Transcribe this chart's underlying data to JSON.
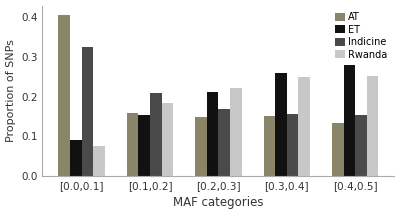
{
  "categories": [
    "[0.0,0.1]",
    "[0.1,0.2]",
    "[0.2,0.3]",
    "[0.3,0.4]",
    "[0.4,0.5]"
  ],
  "series": {
    "AT": [
      0.405,
      0.158,
      0.15,
      0.151,
      0.133
    ],
    "ET": [
      0.092,
      0.155,
      0.213,
      0.261,
      0.281
    ],
    "Indicine": [
      0.326,
      0.21,
      0.17,
      0.157,
      0.155
    ],
    "Rwanda": [
      0.077,
      0.183,
      0.221,
      0.25,
      0.252
    ]
  },
  "colors": {
    "AT": "#8a8468",
    "ET": "#111111",
    "Indicine": "#4a4a4a",
    "Rwanda": "#c8c8c8"
  },
  "xlabel": "MAF categories",
  "ylabel": "Proportion of SNPs",
  "ylim": [
    0.0,
    0.43
  ],
  "yticks": [
    0.0,
    0.1,
    0.2,
    0.3,
    0.4
  ],
  "legend_labels": [
    "AT",
    "ET",
    "Indicine",
    "Rwanda"
  ],
  "bar_width": 0.17,
  "background_color": "#ffffff"
}
